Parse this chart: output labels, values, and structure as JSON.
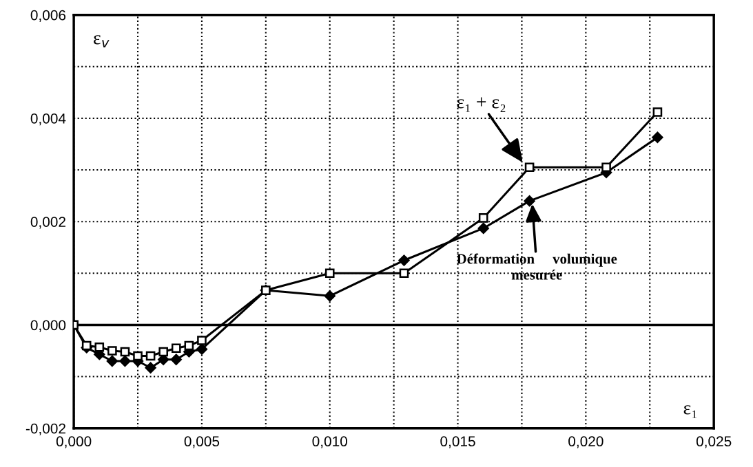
{
  "chart_data": {
    "type": "line",
    "xlabel": "ε₁",
    "ylabel": "ε$_{v}$",
    "xlim": [
      0,
      0.025
    ],
    "ylim": [
      -0.002,
      0.006
    ],
    "xticks": [
      {
        "value": 0,
        "label": "0,000"
      },
      {
        "value": 0.0025,
        "label": null
      },
      {
        "value": 0.005,
        "label": "0,005"
      },
      {
        "value": 0.0075,
        "label": null
      },
      {
        "value": 0.01,
        "label": "0,010"
      },
      {
        "value": 0.0125,
        "label": null
      },
      {
        "value": 0.015,
        "label": "0,015"
      },
      {
        "value": 0.0175,
        "label": null
      },
      {
        "value": 0.02,
        "label": "0,020"
      },
      {
        "value": 0.0225,
        "label": null
      },
      {
        "value": 0.025,
        "label": "0,025"
      }
    ],
    "yticks": [
      {
        "value": -0.002,
        "label": "-0,002"
      },
      {
        "value": -0.001,
        "label": null
      },
      {
        "value": 0,
        "label": "0,000"
      },
      {
        "value": 0.001,
        "label": null
      },
      {
        "value": 0.002,
        "label": "0,002"
      },
      {
        "value": 0.003,
        "label": null
      },
      {
        "value": 0.004,
        "label": "0,004"
      },
      {
        "value": 0.005,
        "label": null
      },
      {
        "value": 0.006,
        "label": "0,006"
      }
    ],
    "grid": true,
    "series": [
      {
        "color": "#000000",
        "marker": "diamond",
        "x": [
          0,
          0.0005,
          0.001,
          0.0015,
          0.002,
          0.0025,
          0.003,
          0.0035,
          0.004,
          0.0045,
          0.005,
          0.0075,
          0.01,
          0.0129,
          0.016,
          0.0178,
          0.0208,
          0.0228
        ],
        "values": [
          0,
          -0.00044,
          -0.00057,
          -0.0007,
          -0.0007,
          -0.0007,
          -0.00083,
          -0.00067,
          -0.00067,
          -0.00052,
          -0.00047,
          0.00067,
          0.00056,
          0.00125,
          0.00187,
          0.0024,
          0.00295,
          0.00363
        ]
      },
      {
        "color": "#000000",
        "marker": "square",
        "x": [
          0,
          0.0005,
          0.001,
          0.0015,
          0.002,
          0.0025,
          0.003,
          0.0035,
          0.004,
          0.0045,
          0.005,
          0.0075,
          0.01,
          0.0129,
          0.016,
          0.0178,
          0.0208,
          0.0228
        ],
        "values": [
          0,
          -0.0004,
          -0.00043,
          -0.0005,
          -0.00052,
          -0.0006,
          -0.0006,
          -0.00052,
          -0.00045,
          -0.0004,
          -0.0003,
          0.00067,
          0.001,
          0.001,
          0.00207,
          0.00305,
          0.00305,
          0.00412
        ]
      }
    ],
    "annotations": [
      {
        "text": "ε₁ + ε₂",
        "x": 0.0176,
        "y": 0.0031
      },
      {
        "text": "Déformation     volumique\nmesurée",
        "x": 0.0179,
        "y": 0.0024
      }
    ]
  }
}
